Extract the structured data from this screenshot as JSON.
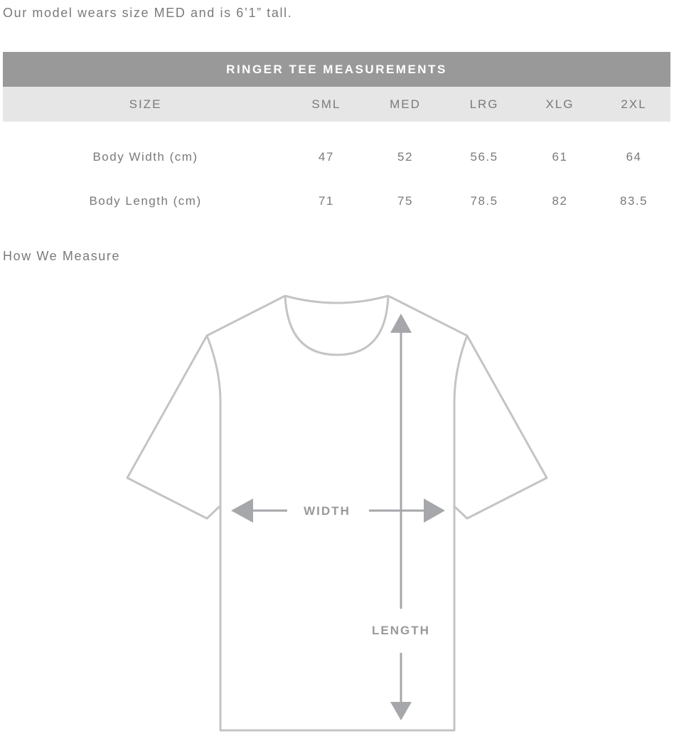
{
  "note": "Our model wears size MED and is 6’1” tall.",
  "table": {
    "title": "RINGER TEE MEASUREMENTS",
    "headers": [
      "SIZE",
      "SML",
      "MED",
      "LRG",
      "XLG",
      "2XL"
    ],
    "rows": [
      [
        "Body Width (cm)",
        "47",
        "52",
        "56.5",
        "61",
        "64"
      ],
      [
        "Body Length (cm)",
        "71",
        "75",
        "78.5",
        "82",
        "83.5"
      ]
    ]
  },
  "how_we_measure": "How We Measure",
  "diagram": {
    "width_label": "WIDTH",
    "length_label": "LENGTH",
    "outline_color": "#c4c4c4",
    "arrow_color": "#a6a7aa"
  }
}
